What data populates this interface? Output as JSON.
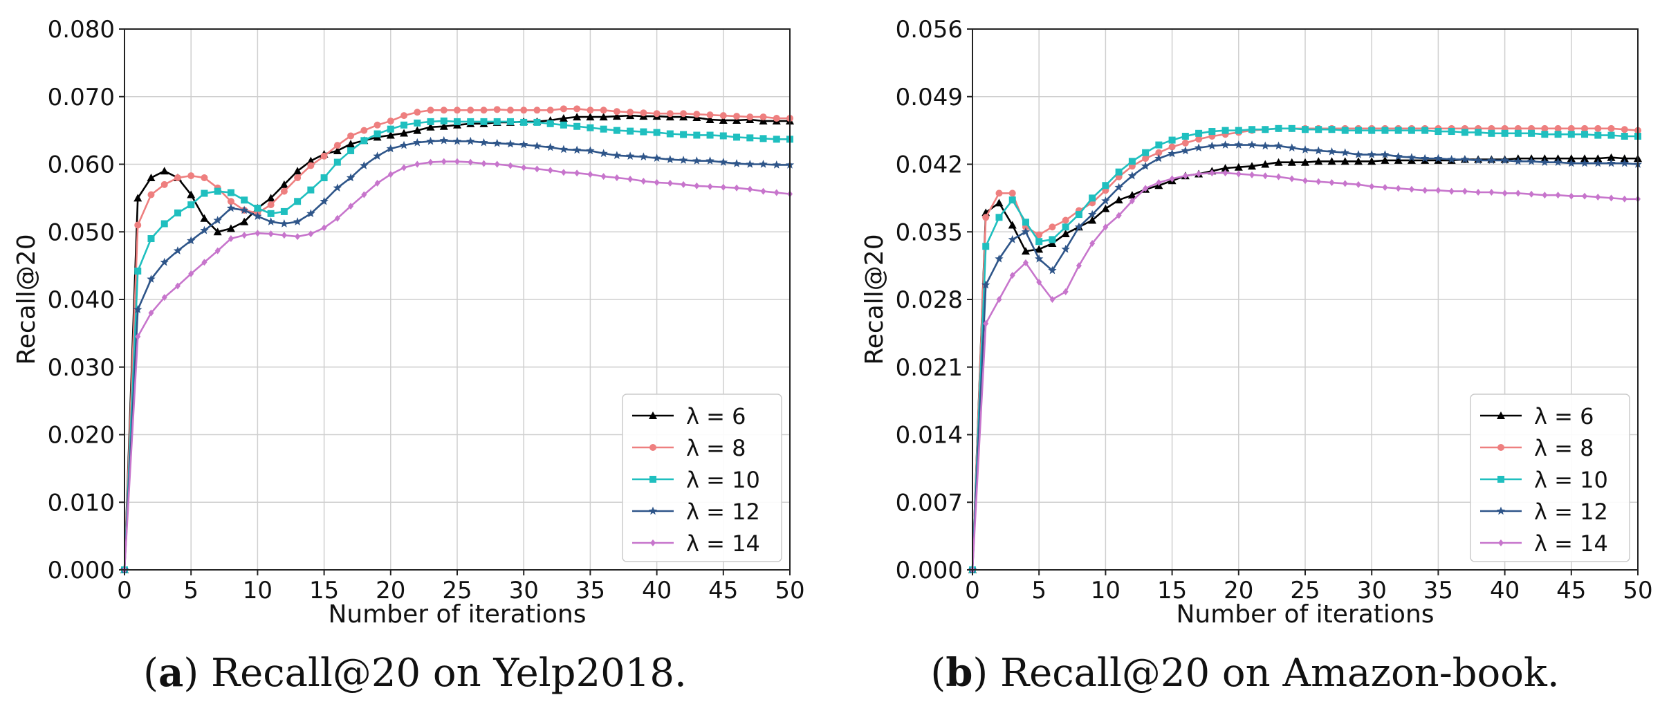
{
  "colors": {
    "lambda_6": "#000000",
    "lambda_8": "#ee7f7f",
    "lambda_10": "#1fbfbf",
    "lambda_12": "#2e5589",
    "lambda_14": "#c775cc"
  },
  "captions": [
    {
      "letter": "a",
      "text": "Recall@20 on Yelp2018."
    },
    {
      "letter": "b",
      "text": "Recall@20 on Amazon-book."
    }
  ],
  "chart_data": [
    {
      "type": "line",
      "title": "",
      "xlabel": "Number of iterations",
      "ylabel": "Recall@20",
      "xlim": [
        0,
        50
      ],
      "ylim": [
        0,
        0.08
      ],
      "xticks": [
        0,
        5,
        10,
        15,
        20,
        25,
        30,
        35,
        40,
        45,
        50
      ],
      "xtick_labels": [
        "0",
        "5",
        "10",
        "15",
        "20",
        "25",
        "30",
        "35",
        "40",
        "45",
        "50"
      ],
      "yticks": [
        0,
        0.01,
        0.02,
        0.03,
        0.04,
        0.05,
        0.06,
        0.07,
        0.08
      ],
      "ytick_labels": [
        "0.000",
        "0.010",
        "0.020",
        "0.030",
        "0.040",
        "0.050",
        "0.060",
        "0.070",
        "0.080"
      ],
      "grid": true,
      "legend_position": "bottom-right",
      "x": [
        0,
        1,
        2,
        3,
        4,
        5,
        6,
        7,
        8,
        9,
        10,
        11,
        12,
        13,
        14,
        15,
        16,
        17,
        18,
        19,
        20,
        21,
        22,
        23,
        24,
        25,
        26,
        27,
        28,
        29,
        30,
        31,
        32,
        33,
        34,
        35,
        36,
        37,
        38,
        39,
        40,
        41,
        42,
        43,
        44,
        45,
        46,
        47,
        48,
        49,
        50
      ],
      "series": [
        {
          "name": "λ = 6",
          "marker": "triangle",
          "values": [
            0.0,
            0.055,
            0.058,
            0.059,
            0.058,
            0.0555,
            0.052,
            0.05,
            0.0505,
            0.0515,
            0.0535,
            0.055,
            0.057,
            0.059,
            0.0605,
            0.0615,
            0.062,
            0.063,
            0.0635,
            0.064,
            0.0643,
            0.0646,
            0.065,
            0.0655,
            0.0656,
            0.0658,
            0.066,
            0.066,
            0.0662,
            0.0662,
            0.0663,
            0.0663,
            0.0665,
            0.0668,
            0.067,
            0.067,
            0.067,
            0.0671,
            0.0672,
            0.0671,
            0.0671,
            0.067,
            0.067,
            0.0669,
            0.0666,
            0.0665,
            0.0665,
            0.0666,
            0.0664,
            0.0664,
            0.0664
          ]
        },
        {
          "name": "λ = 8",
          "marker": "circle",
          "values": [
            0.0,
            0.051,
            0.0555,
            0.057,
            0.058,
            0.0583,
            0.058,
            0.0565,
            0.0545,
            0.0532,
            0.0528,
            0.054,
            0.056,
            0.058,
            0.0598,
            0.0612,
            0.0628,
            0.0642,
            0.065,
            0.0658,
            0.0664,
            0.0672,
            0.0677,
            0.068,
            0.068,
            0.068,
            0.068,
            0.068,
            0.0681,
            0.068,
            0.068,
            0.068,
            0.068,
            0.0682,
            0.0682,
            0.068,
            0.068,
            0.0678,
            0.0677,
            0.0676,
            0.0675,
            0.0675,
            0.0675,
            0.0674,
            0.0673,
            0.0672,
            0.0671,
            0.067,
            0.067,
            0.0668,
            0.0668
          ]
        },
        {
          "name": "λ = 10",
          "marker": "square",
          "values": [
            0.0,
            0.0442,
            0.049,
            0.0512,
            0.0528,
            0.054,
            0.0557,
            0.056,
            0.0558,
            0.0547,
            0.0535,
            0.0527,
            0.053,
            0.0545,
            0.0562,
            0.058,
            0.0603,
            0.062,
            0.0635,
            0.0645,
            0.0652,
            0.0658,
            0.0661,
            0.0663,
            0.0664,
            0.0663,
            0.0663,
            0.0663,
            0.0663,
            0.0663,
            0.0662,
            0.0662,
            0.066,
            0.0658,
            0.0656,
            0.0654,
            0.0652,
            0.065,
            0.0649,
            0.0648,
            0.0647,
            0.0645,
            0.0644,
            0.0643,
            0.0643,
            0.0642,
            0.064,
            0.0639,
            0.0638,
            0.0637,
            0.0637
          ]
        },
        {
          "name": "λ = 12",
          "marker": "star",
          "values": [
            0.0,
            0.0385,
            0.043,
            0.0455,
            0.0472,
            0.0487,
            0.0502,
            0.0517,
            0.0535,
            0.0532,
            0.0523,
            0.0515,
            0.0512,
            0.0515,
            0.0527,
            0.0545,
            0.0565,
            0.058,
            0.0598,
            0.0612,
            0.0623,
            0.0628,
            0.0632,
            0.0634,
            0.0635,
            0.0634,
            0.0634,
            0.0632,
            0.0631,
            0.063,
            0.0629,
            0.0627,
            0.0625,
            0.0622,
            0.0621,
            0.062,
            0.0616,
            0.0613,
            0.0612,
            0.0611,
            0.0609,
            0.0607,
            0.0606,
            0.0605,
            0.0605,
            0.0603,
            0.0601,
            0.06,
            0.06,
            0.0599,
            0.0599
          ]
        },
        {
          "name": "λ = 14",
          "marker": "diamond",
          "values": [
            0.0,
            0.0345,
            0.038,
            0.0403,
            0.042,
            0.0438,
            0.0455,
            0.0472,
            0.049,
            0.0495,
            0.0498,
            0.0497,
            0.0495,
            0.0493,
            0.0497,
            0.0506,
            0.052,
            0.0538,
            0.0555,
            0.0572,
            0.0585,
            0.0595,
            0.06,
            0.0603,
            0.0604,
            0.0604,
            0.0603,
            0.0601,
            0.06,
            0.0598,
            0.0595,
            0.0593,
            0.0591,
            0.0588,
            0.0587,
            0.0585,
            0.0582,
            0.058,
            0.0578,
            0.0575,
            0.0573,
            0.0572,
            0.057,
            0.0568,
            0.0567,
            0.0566,
            0.0565,
            0.0563,
            0.056,
            0.0558,
            0.0556
          ]
        }
      ]
    },
    {
      "type": "line",
      "title": "",
      "xlabel": "Number of iterations",
      "ylabel": "Recall@20",
      "xlim": [
        0,
        50
      ],
      "ylim": [
        0,
        0.056
      ],
      "xticks": [
        0,
        5,
        10,
        15,
        20,
        25,
        30,
        35,
        40,
        45,
        50
      ],
      "xtick_labels": [
        "0",
        "5",
        "10",
        "15",
        "20",
        "25",
        "30",
        "35",
        "40",
        "45",
        "50"
      ],
      "yticks": [
        0,
        0.007,
        0.014,
        0.021,
        0.028,
        0.035,
        0.042,
        0.049,
        0.056
      ],
      "ytick_labels": [
        "0.000",
        "0.007",
        "0.014",
        "0.021",
        "0.028",
        "0.035",
        "0.042",
        "0.049",
        "0.056"
      ],
      "grid": true,
      "legend_position": "bottom-right",
      "x": [
        0,
        1,
        2,
        3,
        4,
        5,
        6,
        7,
        8,
        9,
        10,
        11,
        12,
        13,
        14,
        15,
        16,
        17,
        18,
        19,
        20,
        21,
        22,
        23,
        24,
        25,
        26,
        27,
        28,
        29,
        30,
        31,
        32,
        33,
        34,
        35,
        36,
        37,
        38,
        39,
        40,
        41,
        42,
        43,
        44,
        45,
        46,
        47,
        48,
        49,
        50
      ],
      "series": [
        {
          "name": "λ = 6",
          "marker": "triangle",
          "values": [
            0.0,
            0.037,
            0.038,
            0.0357,
            0.033,
            0.0332,
            0.0338,
            0.0348,
            0.0355,
            0.0362,
            0.0374,
            0.0383,
            0.0388,
            0.0394,
            0.0398,
            0.0403,
            0.0408,
            0.041,
            0.0413,
            0.0416,
            0.0417,
            0.0418,
            0.042,
            0.0422,
            0.0422,
            0.0422,
            0.0423,
            0.0423,
            0.0423,
            0.0423,
            0.0423,
            0.0424,
            0.0424,
            0.0424,
            0.0424,
            0.0424,
            0.0424,
            0.0425,
            0.0425,
            0.0425,
            0.0425,
            0.0426,
            0.0426,
            0.0426,
            0.0426,
            0.0426,
            0.0426,
            0.0426,
            0.0427,
            0.0426,
            0.0426
          ]
        },
        {
          "name": "λ = 8",
          "marker": "circle",
          "values": [
            0.0,
            0.0365,
            0.039,
            0.039,
            0.0355,
            0.0347,
            0.0355,
            0.0362,
            0.0372,
            0.038,
            0.0393,
            0.0407,
            0.0418,
            0.0426,
            0.0432,
            0.0438,
            0.0442,
            0.0446,
            0.0449,
            0.0451,
            0.0453,
            0.0455,
            0.0456,
            0.0457,
            0.0457,
            0.0457,
            0.0457,
            0.0457,
            0.0457,
            0.0457,
            0.0457,
            0.0457,
            0.0457,
            0.0457,
            0.0457,
            0.0457,
            0.0457,
            0.0457,
            0.0457,
            0.0457,
            0.0457,
            0.0457,
            0.0457,
            0.0457,
            0.0457,
            0.0457,
            0.0457,
            0.0457,
            0.0457,
            0.0456,
            0.0455
          ]
        },
        {
          "name": "λ = 10",
          "marker": "square",
          "values": [
            0.0,
            0.0335,
            0.0365,
            0.0383,
            0.036,
            0.034,
            0.0342,
            0.0355,
            0.0368,
            0.0385,
            0.0398,
            0.0412,
            0.0423,
            0.0432,
            0.044,
            0.0445,
            0.0449,
            0.0452,
            0.0454,
            0.0455,
            0.0455,
            0.0456,
            0.0456,
            0.0457,
            0.0457,
            0.0456,
            0.0456,
            0.0456,
            0.0455,
            0.0455,
            0.0455,
            0.0455,
            0.0455,
            0.0455,
            0.0455,
            0.0454,
            0.0454,
            0.0453,
            0.0453,
            0.0452,
            0.0452,
            0.0452,
            0.0452,
            0.0451,
            0.0451,
            0.0451,
            0.0451,
            0.045,
            0.045,
            0.0449,
            0.0449
          ]
        },
        {
          "name": "λ = 12",
          "marker": "star",
          "values": [
            0.0,
            0.0295,
            0.0322,
            0.0342,
            0.035,
            0.0322,
            0.031,
            0.0332,
            0.0355,
            0.0368,
            0.0382,
            0.0396,
            0.0408,
            0.0418,
            0.0426,
            0.0431,
            0.0434,
            0.0437,
            0.0439,
            0.044,
            0.044,
            0.044,
            0.0439,
            0.0439,
            0.0437,
            0.0435,
            0.0434,
            0.0433,
            0.0432,
            0.043,
            0.043,
            0.043,
            0.0428,
            0.0427,
            0.0426,
            0.0426,
            0.0425,
            0.0425,
            0.0424,
            0.0424,
            0.0424,
            0.0423,
            0.0423,
            0.0422,
            0.0422,
            0.0421,
            0.0421,
            0.0421,
            0.0421,
            0.0421,
            0.042
          ]
        },
        {
          "name": "λ = 14",
          "marker": "diamond",
          "values": [
            0.0,
            0.0255,
            0.028,
            0.0305,
            0.0318,
            0.0298,
            0.028,
            0.0288,
            0.0315,
            0.0338,
            0.0355,
            0.0367,
            0.0382,
            0.0395,
            0.0401,
            0.0405,
            0.0408,
            0.041,
            0.0411,
            0.0411,
            0.041,
            0.0409,
            0.0408,
            0.0407,
            0.0405,
            0.0403,
            0.0402,
            0.0401,
            0.04,
            0.0399,
            0.0397,
            0.0396,
            0.0395,
            0.0394,
            0.0393,
            0.0393,
            0.0392,
            0.0392,
            0.0391,
            0.0391,
            0.039,
            0.039,
            0.0389,
            0.0388,
            0.0388,
            0.0387,
            0.0387,
            0.0386,
            0.0385,
            0.0384,
            0.0384
          ]
        }
      ]
    }
  ]
}
